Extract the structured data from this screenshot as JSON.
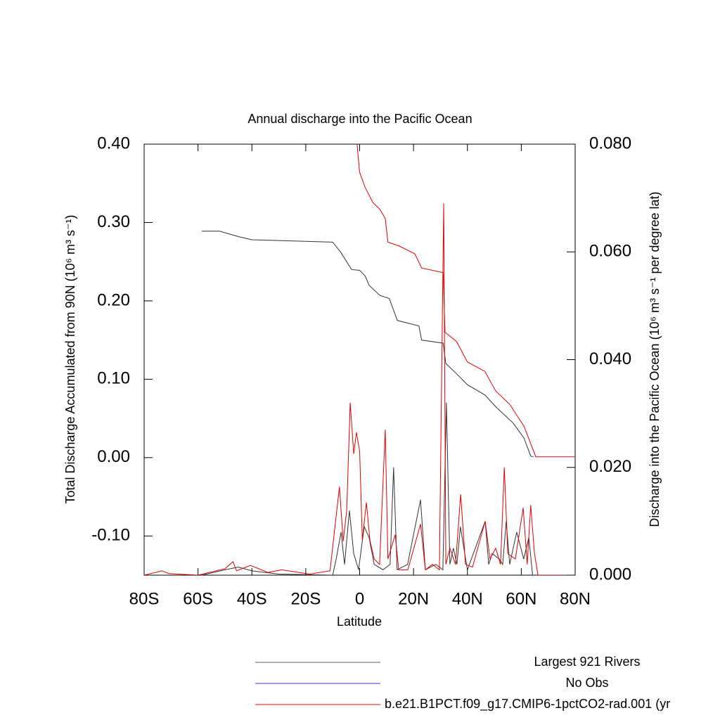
{
  "chart_data": {
    "type": "line",
    "title": "Annual discharge into the Pacific Ocean",
    "xlabel": "Latitude",
    "ylabel": "Total Discharge Accumulated from 90N (10⁶ m³ s⁻¹)",
    "y2label": "Discharge into the Pacific Ocean (10⁶ m³ s⁻¹ per degree lat)",
    "xlim": [
      -80,
      80
    ],
    "xticks": [
      {
        "value": -80,
        "label": "80S"
      },
      {
        "value": -60,
        "label": "60S"
      },
      {
        "value": -40,
        "label": "40S"
      },
      {
        "value": -20,
        "label": "20S"
      },
      0,
      {
        "value": 20,
        "label": "20N"
      },
      {
        "value": 40,
        "label": "40N"
      },
      {
        "value": 60,
        "label": "60N"
      },
      {
        "value": 80,
        "label": "80N"
      }
    ],
    "ylim": [
      -0.15,
      0.4
    ],
    "yticks": [
      {
        "value": -0.1,
        "label": "-0.10"
      },
      {
        "value": 0,
        "label": "0.00"
      },
      {
        "value": 0.1,
        "label": "0.10"
      },
      {
        "value": 0.2,
        "label": "0.20"
      },
      {
        "value": 0.3,
        "label": "0.30"
      },
      {
        "value": 0.4,
        "label": "0.40"
      }
    ],
    "y2lim": [
      0,
      0.08
    ],
    "y2ticks": [
      {
        "value": 0,
        "label": "0.000"
      },
      {
        "value": 0.02,
        "label": "0.020"
      },
      {
        "value": 0.04,
        "label": "0.040"
      },
      {
        "value": 0.06,
        "label": "0.060"
      },
      {
        "value": 0.08,
        "label": "0.080"
      }
    ],
    "legend": [
      {
        "name": "Largest 921 Rivers",
        "color": "#666666"
      },
      {
        "name": "No Obs",
        "color": "#3333ff"
      },
      {
        "name": "b.e21.B1PCT.f09_g17.CMIP6-1pctCO2-rad.001 (yr",
        "color": "#ff0000"
      }
    ],
    "series": [
      {
        "color": "#333333",
        "axis": "y",
        "x": [
          -58.6,
          -52,
          -45,
          -40,
          -30,
          -10,
          -7,
          -3,
          0,
          2,
          3.5,
          7.5,
          11,
          14,
          22,
          23,
          31,
          32,
          36,
          40,
          46.5,
          50.5,
          57,
          61,
          63.5,
          64.5
        ],
        "values": [
          0.289,
          0.289,
          0.282,
          0.278,
          0.277,
          0.275,
          0.262,
          0.24,
          0.239,
          0.232,
          0.22,
          0.207,
          0.203,
          0.175,
          0.168,
          0.15,
          0.146,
          0.12,
          0.107,
          0.093,
          0.08,
          0.065,
          0.044,
          0.025,
          0.002,
          0.001
        ]
      },
      {
        "color": "#e00000",
        "axis": "y",
        "x": [
          -1.5,
          0,
          2,
          5,
          7.5,
          9.5,
          10.5,
          14.7,
          20.5,
          23,
          31,
          31.7,
          36,
          40,
          46.5,
          50.5,
          55.7,
          61,
          65.4,
          80
        ],
        "values": [
          0.42,
          0.364,
          0.345,
          0.325,
          0.317,
          0.305,
          0.275,
          0.27,
          0.26,
          0.242,
          0.236,
          0.16,
          0.148,
          0.122,
          0.11,
          0.085,
          0.068,
          0.04,
          0.001,
          0.001
        ]
      },
      {
        "color": "#333333",
        "axis": "y2",
        "x": [
          -58.6,
          -50,
          -45,
          -40,
          -30,
          -10,
          -8.7,
          -6.9,
          -5.6,
          -3.8,
          -2.2,
          -0.4,
          1.7,
          3.5,
          5.4,
          8.7,
          11.3,
          12.6,
          13.9,
          17.8,
          22.6,
          24.4,
          28.3,
          30.9,
          32.2,
          33.5,
          34.8,
          36.1,
          37.4,
          40,
          46.6,
          47.9,
          49.2,
          51.8,
          53.1,
          54.4,
          55.7,
          58.3,
          60.9,
          62.8,
          64.2
        ],
        "values": [
          0,
          0.001,
          0.0015,
          0.0008,
          0.0002,
          0,
          0.003,
          0.008,
          0.002,
          0.012,
          0.004,
          0.001,
          0.009,
          0.007,
          0.002,
          0.001,
          0.002,
          0.02,
          0.001,
          0.002,
          0.014,
          0.001,
          0.002,
          0.001,
          0.032,
          0.002,
          0.005,
          0.002,
          0.009,
          0.001,
          0.01,
          0.002,
          0.004,
          0.003,
          0.002,
          0.01,
          0.002,
          0.008,
          0.003,
          0.007,
          0
        ]
      },
      {
        "color": "#e00000",
        "axis": "y2",
        "x": [
          -80,
          -73.4,
          -70.8,
          -60,
          -50,
          -47,
          -45.7,
          -40.5,
          -34,
          -28.9,
          -18.5,
          -11,
          -7.5,
          -6.1,
          -4.8,
          -3.5,
          -2.2,
          -1.2,
          0,
          1,
          2.5,
          3.8,
          5.4,
          7.4,
          9.5,
          10.5,
          13.2,
          14.5,
          17.9,
          22.6,
          24.4,
          27,
          29.6,
          31.2,
          32,
          33.5,
          35.6,
          37.5,
          39.3,
          41.9,
          46.6,
          48.4,
          50.5,
          52.3,
          53.7,
          55,
          57.8,
          60.7,
          62.2,
          63.5,
          64.9,
          66.2,
          80
        ],
        "values": [
          0,
          0.0008,
          0.0003,
          0,
          0.0012,
          0.0025,
          0.0008,
          0.0018,
          0.0005,
          0.001,
          0.0002,
          0.0008,
          0.0164,
          0.0063,
          0.012,
          0.032,
          0.0225,
          0.0265,
          0.023,
          0.0065,
          0.0135,
          0.0065,
          0.003,
          0.002,
          0.027,
          0.003,
          0.0075,
          0.001,
          0.001,
          0.0095,
          0.001,
          0.002,
          0.001,
          0.069,
          0.002,
          0.005,
          0.002,
          0.015,
          0.002,
          0.0015,
          0.01,
          0.003,
          0.005,
          0.002,
          0.02,
          0.004,
          0.003,
          0.0125,
          0.002,
          0.013,
          0.004,
          0,
          0
        ]
      }
    ]
  }
}
